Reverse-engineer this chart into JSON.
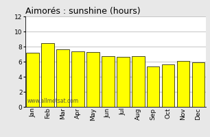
{
  "title": "Aimorés : sunshine (hours)",
  "months": [
    "Jan",
    "Feb",
    "Mar",
    "Apr",
    "May",
    "Jun",
    "Jul",
    "Aug",
    "Sep",
    "Oct",
    "Nov",
    "Dec"
  ],
  "values": [
    7.2,
    8.5,
    7.6,
    7.4,
    7.3,
    6.7,
    6.6,
    6.7,
    5.4,
    5.6,
    6.1,
    5.9
  ],
  "bar_color": "#ffff00",
  "bar_edge_color": "#000000",
  "ylim": [
    0,
    12
  ],
  "yticks": [
    0,
    2,
    4,
    6,
    8,
    10,
    12
  ],
  "grid_color": "#bbbbbb",
  "bg_color": "#e8e8e8",
  "plot_bg_color": "#ffffff",
  "watermark": "www.allmetsat.com",
  "title_fontsize": 9,
  "tick_fontsize": 6.5,
  "bar_width": 0.85
}
